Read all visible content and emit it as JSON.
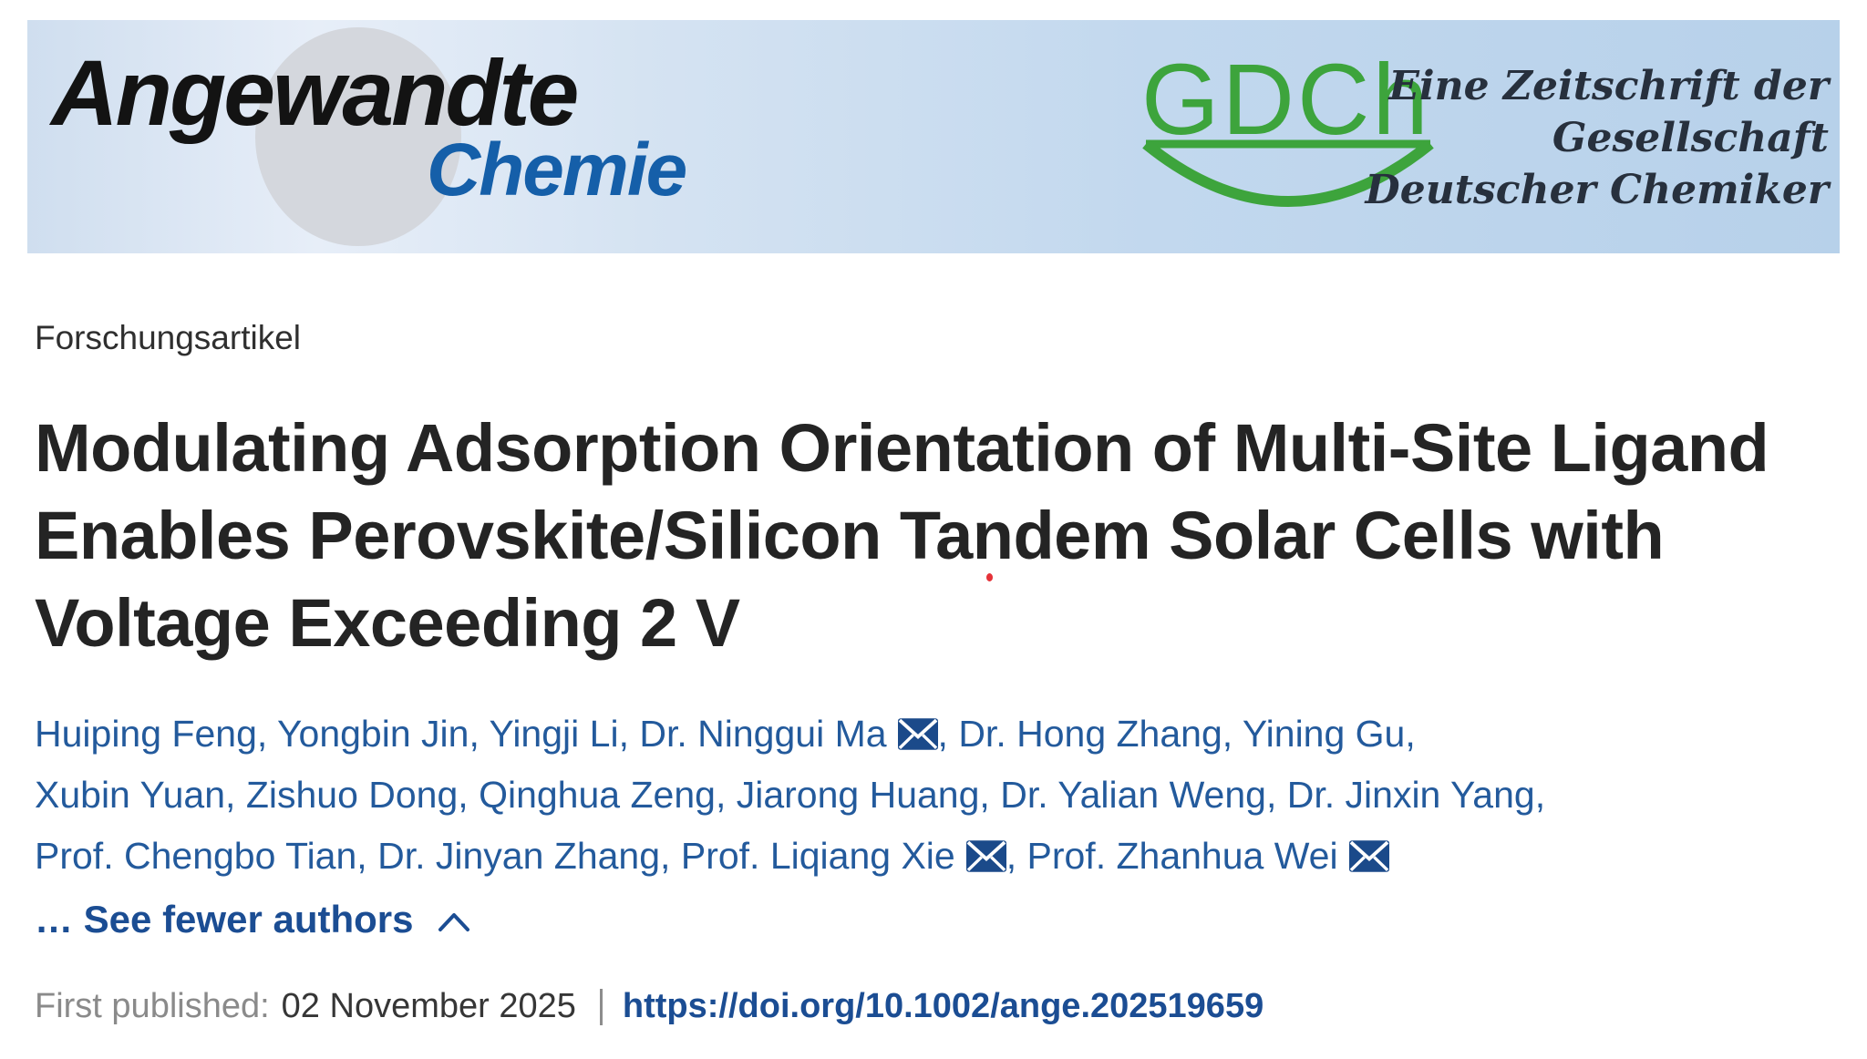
{
  "banner": {
    "journal_name_line1": "Angewandte",
    "journal_name_line2": "Chemie",
    "gdch_text": "GDCh",
    "tagline_lines": [
      "Eine Zeitschrift der",
      "Gesellschaft",
      "Deutscher Chemiker"
    ]
  },
  "article": {
    "category": "Forschungsartikel",
    "title_lines": [
      "Modulating Adsorption Orientation of Multi-Site Ligand",
      "Enables Perovskite/Silicon Tandem Solar Cells with",
      "Voltage Exceeding 2 V"
    ]
  },
  "authors": {
    "lines": [
      [
        {
          "name": "Huiping Feng"
        },
        {
          "name": "Yongbin Jin"
        },
        {
          "name": "Yingji Li"
        },
        {
          "name": "Dr. Ninggui Ma",
          "email": true
        },
        {
          "name": "Dr. Hong Zhang"
        },
        {
          "name": "Yining Gu"
        }
      ],
      [
        {
          "name": "Xubin Yuan"
        },
        {
          "name": "Zishuo Dong"
        },
        {
          "name": "Qinghua Zeng"
        },
        {
          "name": "Jiarong Huang"
        },
        {
          "name": "Dr. Yalian Weng"
        },
        {
          "name": "Dr. Jinxin Yang"
        }
      ],
      [
        {
          "name": "Prof. Chengbo Tian"
        },
        {
          "name": "Dr. Jinyan Zhang"
        },
        {
          "name": "Prof. Liqiang Xie",
          "email": true
        },
        {
          "name": "Prof. Zhanhua Wei",
          "email": true
        }
      ]
    ],
    "see_fewer_label": "… See fewer authors"
  },
  "meta": {
    "first_published_label": "First published:",
    "first_published_date": "02 November 2025",
    "separator": "|",
    "doi_link": "https://doi.org/10.1002/ange.202519659"
  },
  "colors": {
    "author_link_blue": "#235a9c",
    "action_link_blue": "#1b4d93",
    "chemie_blue": "#155fa9",
    "gdch_green": "#3da43c",
    "banner_left": "#cfdeef",
    "banner_right": "#b7d1ea",
    "title_text": "#242424",
    "muted_label_gray": "#8a8a8a",
    "red_dot": "#e53238"
  }
}
